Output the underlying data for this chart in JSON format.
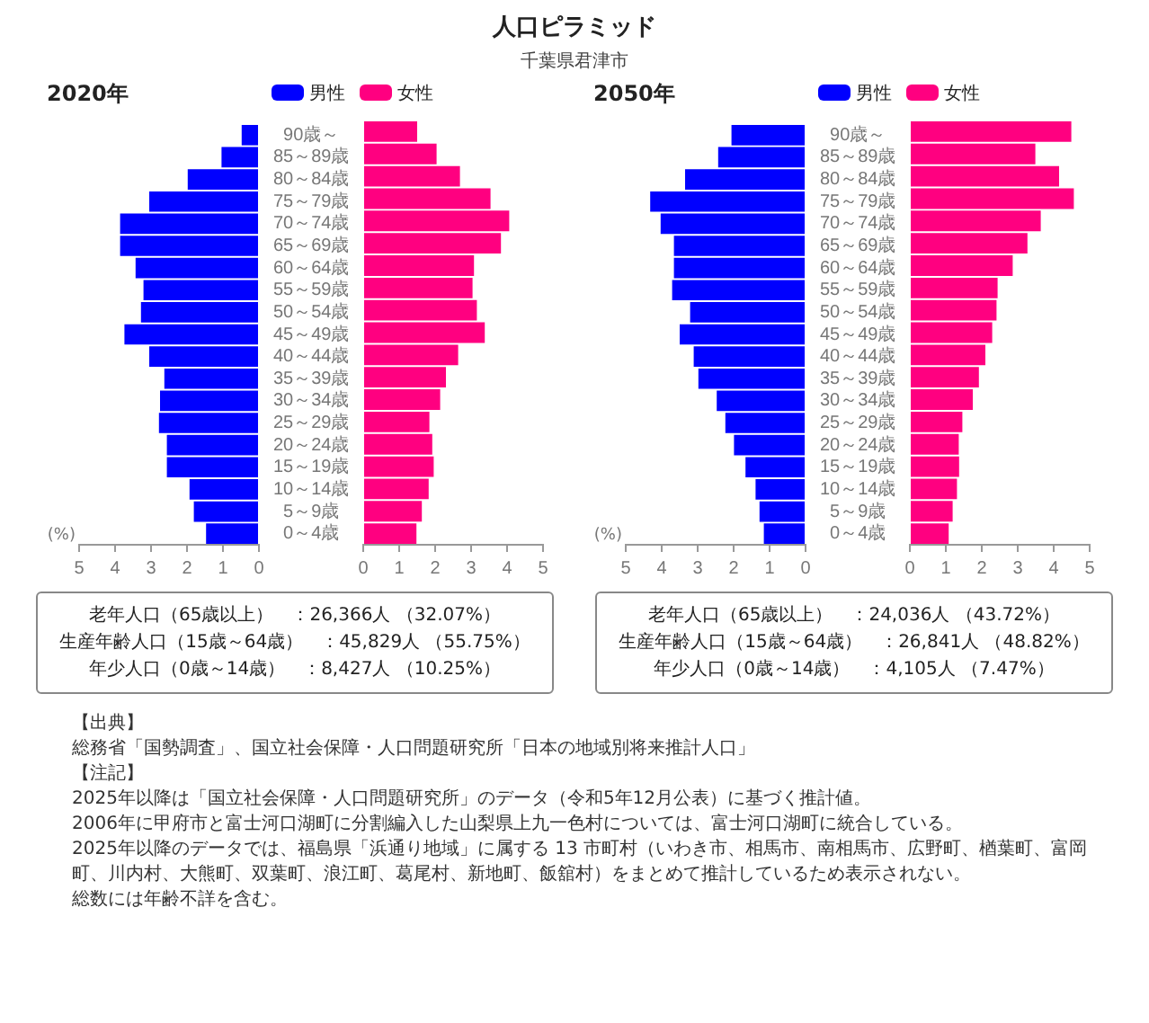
{
  "chart_data": [
    {
      "type": "other",
      "title": "人口ピラミッド",
      "subtitle": "千葉県君津市"
    },
    {
      "type": "bar",
      "orientation": "horizontal",
      "title": "2020年",
      "xlabel": "(%)",
      "legend": "top",
      "xlim": [
        5,
        0
      ],
      "xticks": [
        5,
        4,
        3,
        2,
        1,
        0
      ],
      "categories": [
        "90歳～",
        "85～89歳",
        "80～84歳",
        "75～79歳",
        "70～74歳",
        "65～69歳",
        "60～64歳",
        "55～59歳",
        "50～54歳",
        "45～49歳",
        "40～44歳",
        "35～39歳",
        "30～34歳",
        "25～29歳",
        "20～24歳",
        "15～19歳",
        "10～14歳",
        "5～9歳",
        "0～4歳"
      ],
      "series": [
        {
          "name": "男性",
          "color": "#0000ff",
          "values": [
            0.48,
            1.04,
            1.98,
            3.05,
            3.86,
            3.86,
            3.43,
            3.21,
            3.28,
            3.74,
            3.05,
            2.63,
            2.75,
            2.78,
            2.56,
            2.56,
            1.93,
            1.81,
            1.47
          ]
        }
      ]
    },
    {
      "type": "bar",
      "orientation": "horizontal",
      "legend": "top",
      "tick_labels": "x",
      "xlim": [
        0,
        5
      ],
      "xticks": [
        0,
        1,
        2,
        3,
        4,
        5
      ],
      "categories": [
        null,
        null,
        null,
        null,
        null,
        null,
        null,
        null,
        null,
        null,
        null,
        null,
        null,
        null,
        null,
        null,
        null,
        null,
        null
      ],
      "series": [
        {
          "name": "女性",
          "color": "#ff0080",
          "values": [
            1.5,
            2.04,
            2.69,
            3.54,
            4.06,
            3.83,
            3.08,
            3.04,
            3.16,
            3.38,
            2.64,
            2.3,
            2.14,
            1.84,
            1.92,
            1.96,
            1.82,
            1.63,
            1.48
          ]
        }
      ]
    },
    {
      "type": "bar",
      "orientation": "horizontal",
      "title": "2050年",
      "xlabel": "(%)",
      "legend": "top",
      "xlim": [
        5,
        0
      ],
      "xticks": [
        5,
        4,
        3,
        2,
        1,
        0
      ],
      "categories": [
        "90歳～",
        "85～89歳",
        "80～84歳",
        "75～79歳",
        "70～74歳",
        "65～69歳",
        "60～64歳",
        "55～59歳",
        "50～54歳",
        "45～49歳",
        "40～44歳",
        "35～39歳",
        "30～34歳",
        "25～29歳",
        "20～24歳",
        "15～19歳",
        "10～14歳",
        "5～9歳",
        "0～4歳"
      ],
      "series": [
        {
          "name": "男性",
          "color": "#0000ff",
          "values": [
            2.06,
            2.43,
            3.35,
            4.32,
            4.03,
            3.66,
            3.66,
            3.71,
            3.21,
            3.5,
            3.11,
            2.98,
            2.47,
            2.23,
            1.99,
            1.67,
            1.39,
            1.28,
            1.16
          ]
        }
      ]
    },
    {
      "type": "bar",
      "orientation": "horizontal",
      "legend": "top",
      "tick_labels": "x",
      "xlim": [
        0,
        5
      ],
      "xticks": [
        0,
        1,
        2,
        3,
        4,
        5
      ],
      "categories": [
        null,
        null,
        null,
        null,
        null,
        null,
        null,
        null,
        null,
        null,
        null,
        null,
        null,
        null,
        null,
        null,
        null,
        null,
        null
      ],
      "series": [
        {
          "name": "女性",
          "color": "#ff0080",
          "values": [
            4.49,
            3.49,
            4.15,
            4.56,
            3.64,
            3.27,
            2.86,
            2.44,
            2.41,
            2.29,
            2.1,
            1.92,
            1.75,
            1.46,
            1.36,
            1.37,
            1.31,
            1.19,
            1.08
          ]
        }
      ]
    },
    {
      "type": "other",
      "annotations": [
        "老年人口（65歳以上）　：26,366人 （32.07%）",
        "生産年齢人口（15歳～64歳）　：45,829人 （55.75%）",
        "年少人口（0歳～14歳）　：8,427人 （10.25%）"
      ]
    },
    {
      "type": "other",
      "annotations": [
        "老年人口（65歳以上）　：24,036人 （43.72%）",
        "生産年齢人口（15歳～64歳）　：26,841人 （48.82%）",
        "年少人口（0歳～14歳）　：4,105人 （7.47%）"
      ]
    },
    {
      "type": "other",
      "annotations": [
        "【出典】",
        "総務省「国勢調査」、国立社会保障・人口問題研究所「日本の地域別将来推計人口」",
        "【注記】",
        "2025年以降は「国立社会保障・人口問題研究所」のデータ（令和5年12月公表）に基づく推計値。",
        "2006年に甲府市と富士河口湖町に分割編入した山梨県上九一色村については、富士河口湖町に統合している。",
        "2025年以降のデータでは、福島県「浜通り地域」に属する 13 市町村（いわき市、相馬市、南相馬市、広野町、楢葉町、富岡町、川内村、大熊町、双葉町、浪江町、葛尾村、新地町、飯舘村）をまとめて推計しているため表示されない。",
        "総数には年齢不詳を含む。"
      ]
    }
  ]
}
